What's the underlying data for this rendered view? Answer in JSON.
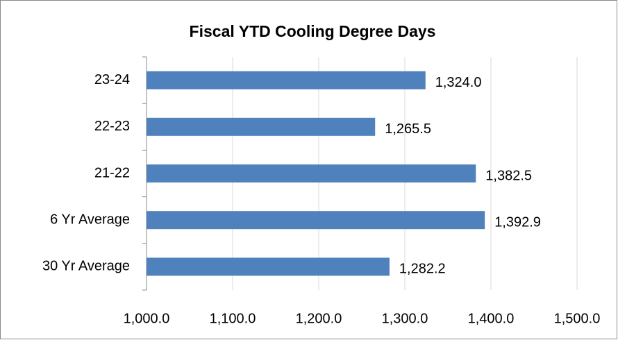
{
  "chart_data": {
    "type": "bar",
    "orientation": "horizontal",
    "title": "Fiscal YTD Cooling Degree Days",
    "categories": [
      "23-24",
      "22-23",
      "21-22",
      "6 Yr Average",
      "30 Yr Average"
    ],
    "values": [
      1324.0,
      1265.5,
      1382.5,
      1392.9,
      1282.2
    ],
    "value_labels": [
      "1,324.0",
      "1,265.5",
      "1,382.5",
      "1,392.9",
      "1,282.2"
    ],
    "color": "#4f81bd",
    "xlim": [
      1000,
      1500
    ],
    "xticks": [
      {
        "value": 1000,
        "label": "1,000.0"
      },
      {
        "value": 1100,
        "label": "1,100.0"
      },
      {
        "value": 1200,
        "label": "1,200.0"
      },
      {
        "value": 1300,
        "label": "1,300.0"
      },
      {
        "value": 1400,
        "label": "1,400.0"
      },
      {
        "value": 1500,
        "label": "1,500.0"
      }
    ],
    "grid": true
  }
}
